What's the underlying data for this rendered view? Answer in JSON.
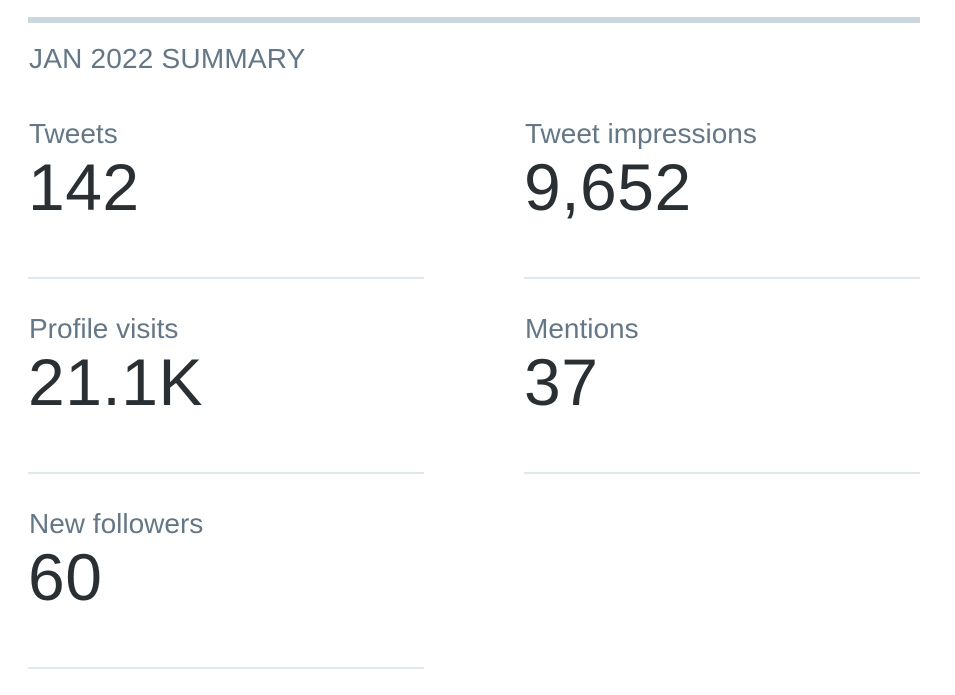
{
  "summary": {
    "title": "JAN 2022 SUMMARY",
    "stats": [
      {
        "label": "Tweets",
        "value": "142"
      },
      {
        "label": "Tweet impressions",
        "value": "9,652"
      },
      {
        "label": "Profile visits",
        "value": "21.1K"
      },
      {
        "label": "Mentions",
        "value": "37"
      },
      {
        "label": "New followers",
        "value": "60"
      }
    ]
  },
  "colors": {
    "label": "#657786",
    "value": "#292f33",
    "divider": "#e1e8ed",
    "top_rule": "#ccd6dd"
  }
}
